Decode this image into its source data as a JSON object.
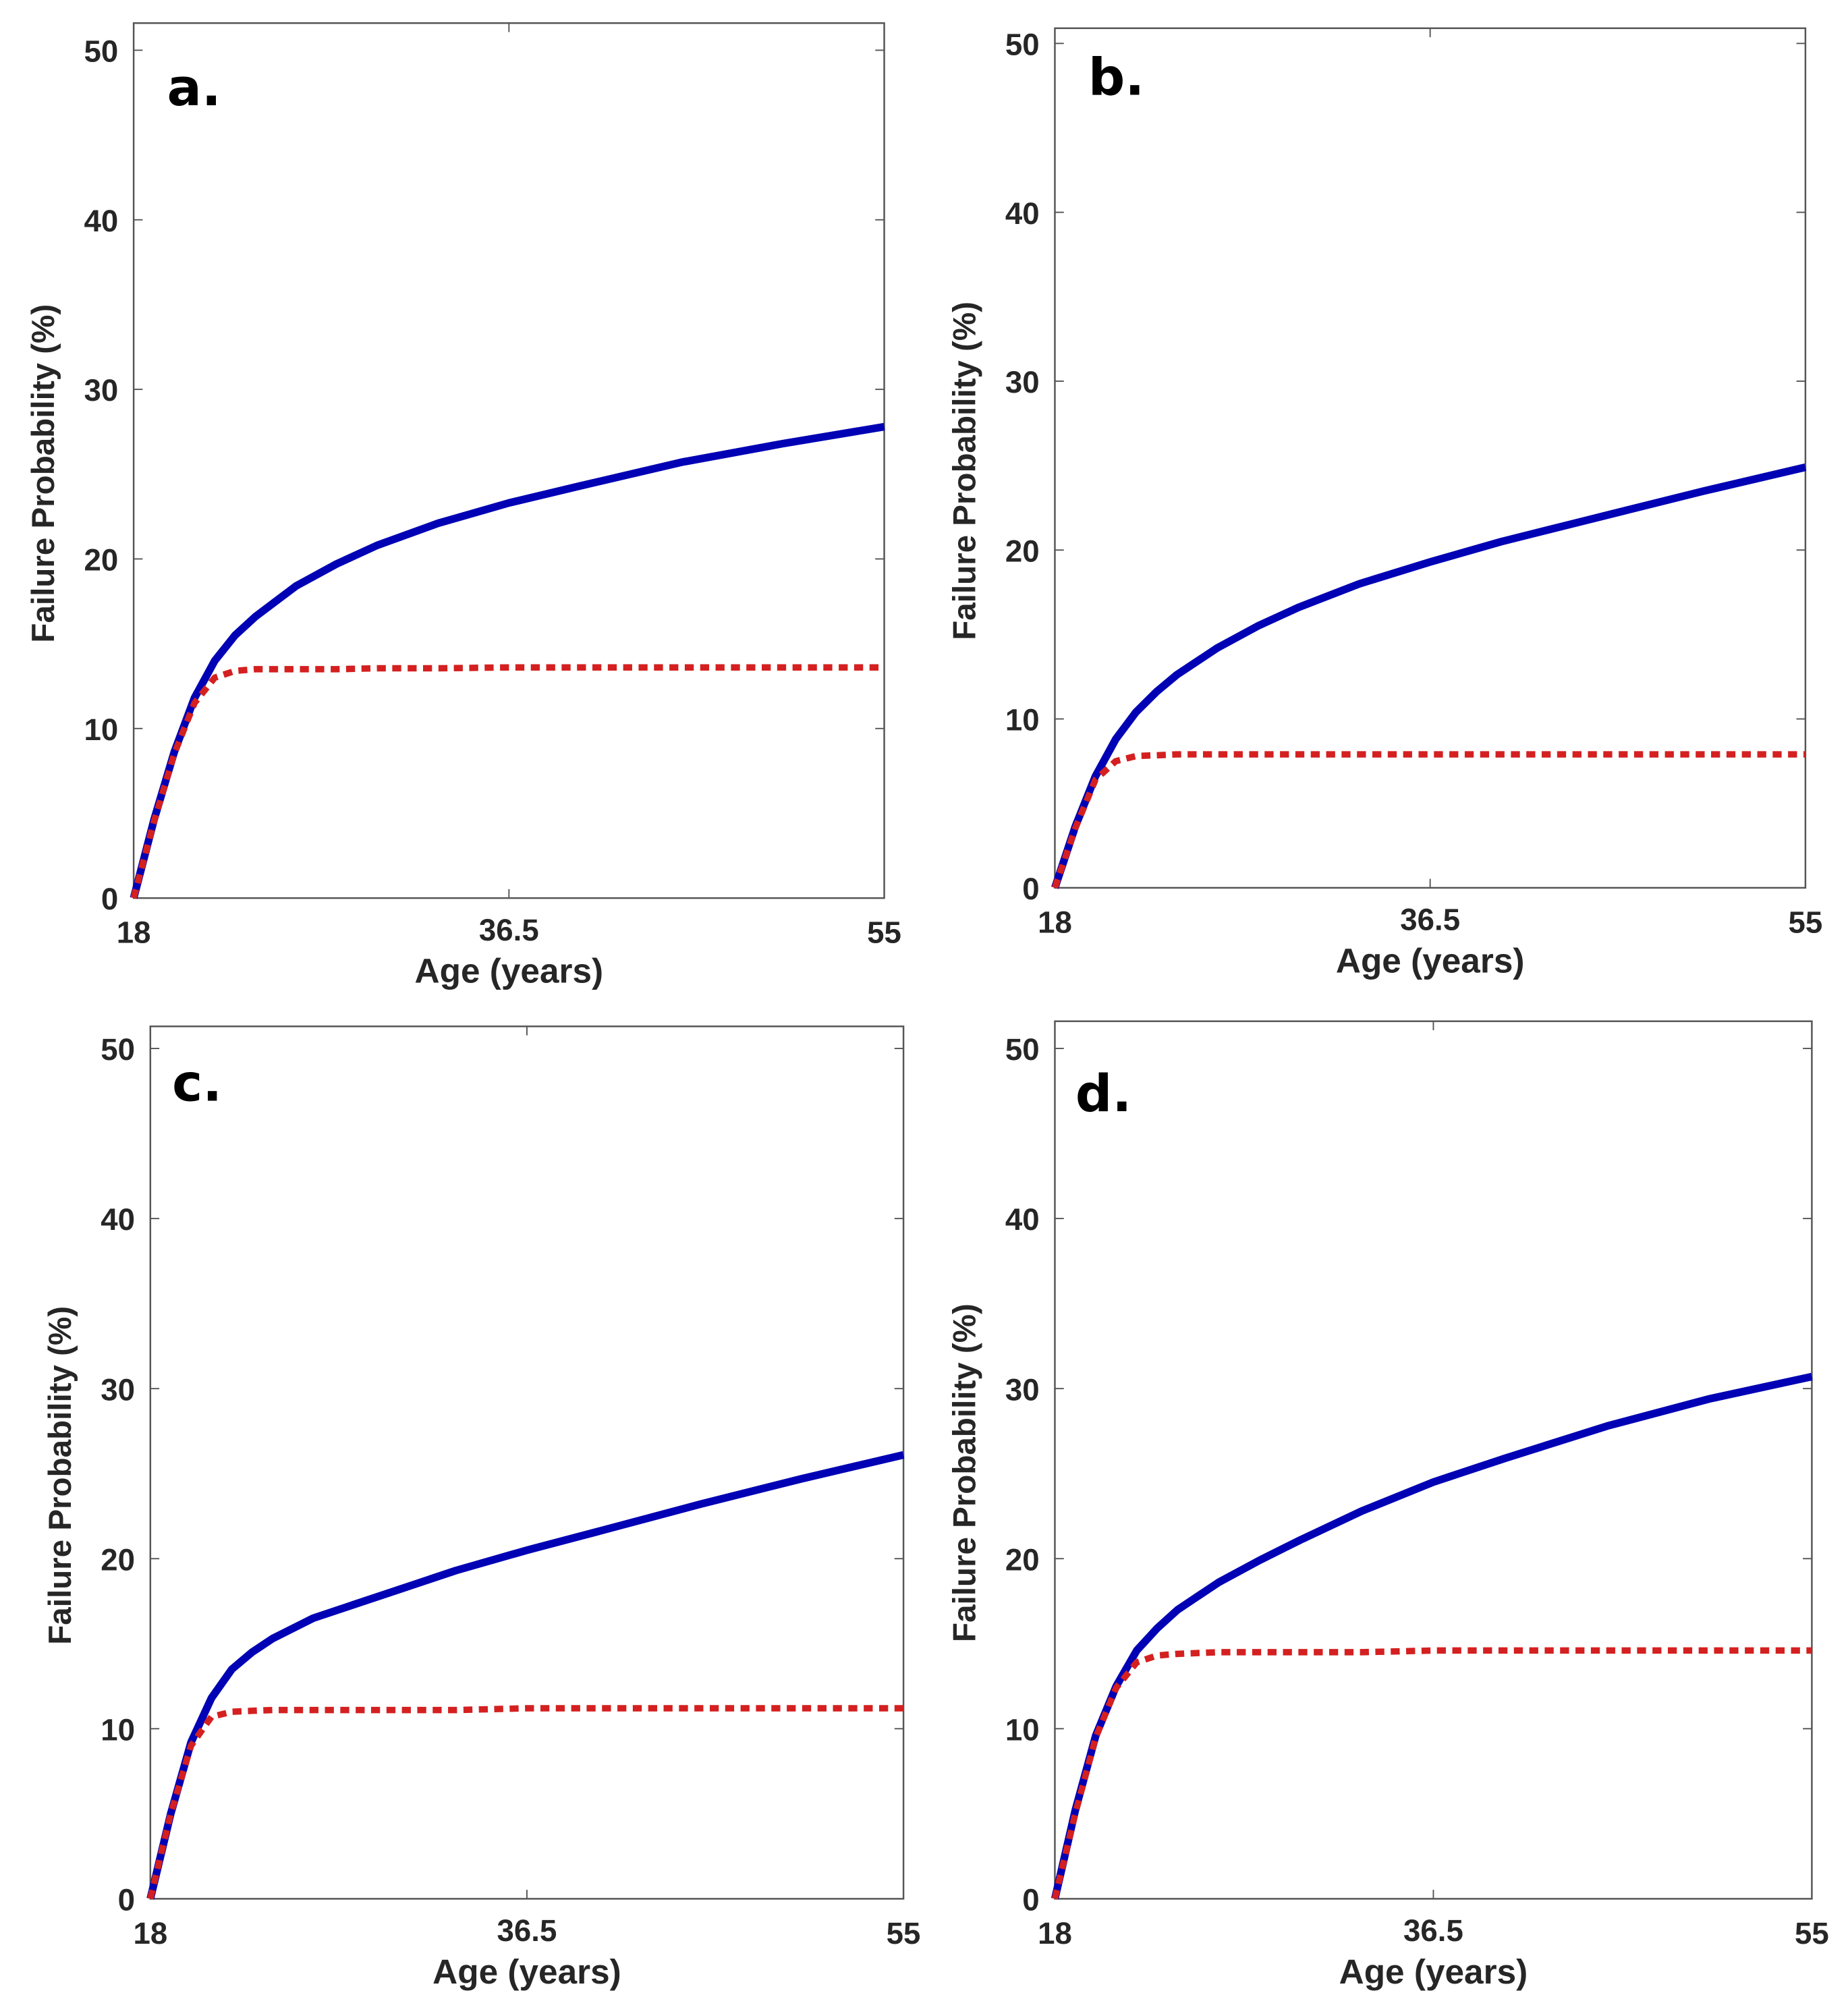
{
  "chart_data": [
    {
      "type": "line",
      "panel_label": "a.",
      "xlabel": "Age (years)",
      "ylabel": "Failure Probability (%)",
      "xlim": [
        18,
        55
      ],
      "ylim": [
        0,
        51.6
      ],
      "xticks": [
        "18",
        "36.5",
        "55"
      ],
      "yticks": [
        "0",
        "10",
        "20",
        "30",
        "40",
        "50"
      ],
      "x": [
        18,
        19,
        20,
        21,
        22,
        23,
        24,
        26,
        28,
        30,
        33,
        36.5,
        40,
        45,
        50,
        55
      ],
      "series": [
        {
          "name": "blue-solid",
          "color": "#0000b4",
          "style": "solid",
          "values": [
            0,
            4.6,
            8.6,
            11.8,
            14.0,
            15.5,
            16.6,
            18.4,
            19.7,
            20.8,
            22.1,
            23.3,
            24.3,
            25.7,
            26.8,
            27.8
          ]
        },
        {
          "name": "red-dotted",
          "color": "#d42020",
          "style": "dotted",
          "values": [
            0,
            4.5,
            8.5,
            11.5,
            13.0,
            13.4,
            13.5,
            13.5,
            13.5,
            13.55,
            13.55,
            13.6,
            13.6,
            13.6,
            13.6,
            13.6
          ]
        }
      ]
    },
    {
      "type": "line",
      "panel_label": "b.",
      "xlabel": "Age (years)",
      "ylabel": "Failure Probability (%)",
      "xlim": [
        18,
        55
      ],
      "ylim": [
        0,
        50.9
      ],
      "xticks": [
        "18",
        "36.5",
        "55"
      ],
      "yticks": [
        "0",
        "10",
        "20",
        "30",
        "40",
        "50"
      ],
      "x": [
        18,
        19,
        20,
        21,
        22,
        23,
        24,
        26,
        28,
        30,
        33,
        36.5,
        40,
        45,
        50,
        55
      ],
      "series": [
        {
          "name": "blue-solid",
          "color": "#0000b4",
          "style": "solid",
          "values": [
            0,
            3.6,
            6.6,
            8.8,
            10.4,
            11.6,
            12.6,
            14.2,
            15.5,
            16.6,
            18.0,
            19.3,
            20.5,
            22.0,
            23.5,
            24.9
          ]
        },
        {
          "name": "red-dotted",
          "color": "#d42020",
          "style": "dotted",
          "values": [
            0,
            3.5,
            6.4,
            7.5,
            7.8,
            7.85,
            7.9,
            7.9,
            7.9,
            7.9,
            7.9,
            7.9,
            7.9,
            7.9,
            7.9,
            7.9
          ]
        }
      ]
    },
    {
      "type": "line",
      "panel_label": "c.",
      "xlabel": "Age (years)",
      "ylabel": "Failure Probability (%)",
      "xlim": [
        18,
        55
      ],
      "ylim": [
        0,
        51.3
      ],
      "xticks": [
        "18",
        "36.5",
        "55"
      ],
      "yticks": [
        "0",
        "10",
        "20",
        "30",
        "40",
        "50"
      ],
      "x": [
        18,
        19,
        20,
        21,
        22,
        23,
        24,
        26,
        28,
        30,
        33,
        36.5,
        40,
        45,
        50,
        55
      ],
      "series": [
        {
          "name": "blue-solid",
          "color": "#0000b4",
          "style": "solid",
          "values": [
            0,
            5.0,
            9.2,
            11.8,
            13.5,
            14.5,
            15.3,
            16.5,
            17.3,
            18.1,
            19.3,
            20.5,
            21.6,
            23.2,
            24.7,
            26.1
          ]
        },
        {
          "name": "red-dotted",
          "color": "#d42020",
          "style": "dotted",
          "values": [
            0,
            5.0,
            9.0,
            10.7,
            11.0,
            11.05,
            11.1,
            11.1,
            11.1,
            11.1,
            11.1,
            11.2,
            11.2,
            11.2,
            11.2,
            11.2
          ]
        }
      ]
    },
    {
      "type": "line",
      "panel_label": "d.",
      "xlabel": "Age (years)",
      "ylabel": "Failure Probability (%)",
      "xlim": [
        18,
        55
      ],
      "ylim": [
        0,
        51.6
      ],
      "xticks": [
        "18",
        "36.5",
        "55"
      ],
      "yticks": [
        "0",
        "10",
        "20",
        "30",
        "40",
        "50"
      ],
      "x": [
        18,
        19,
        20,
        21,
        22,
        23,
        24,
        26,
        28,
        30,
        33,
        36.5,
        40,
        45,
        50,
        55
      ],
      "series": [
        {
          "name": "blue-solid",
          "color": "#0000b4",
          "style": "solid",
          "values": [
            0,
            5.2,
            9.6,
            12.5,
            14.6,
            15.9,
            17.0,
            18.6,
            19.9,
            21.1,
            22.8,
            24.5,
            25.9,
            27.8,
            29.4,
            30.7
          ]
        },
        {
          "name": "red-dotted",
          "color": "#d42020",
          "style": "dotted",
          "values": [
            0,
            5.0,
            9.5,
            12.4,
            13.9,
            14.3,
            14.4,
            14.5,
            14.5,
            14.5,
            14.5,
            14.6,
            14.6,
            14.6,
            14.6,
            14.6
          ]
        }
      ]
    }
  ]
}
